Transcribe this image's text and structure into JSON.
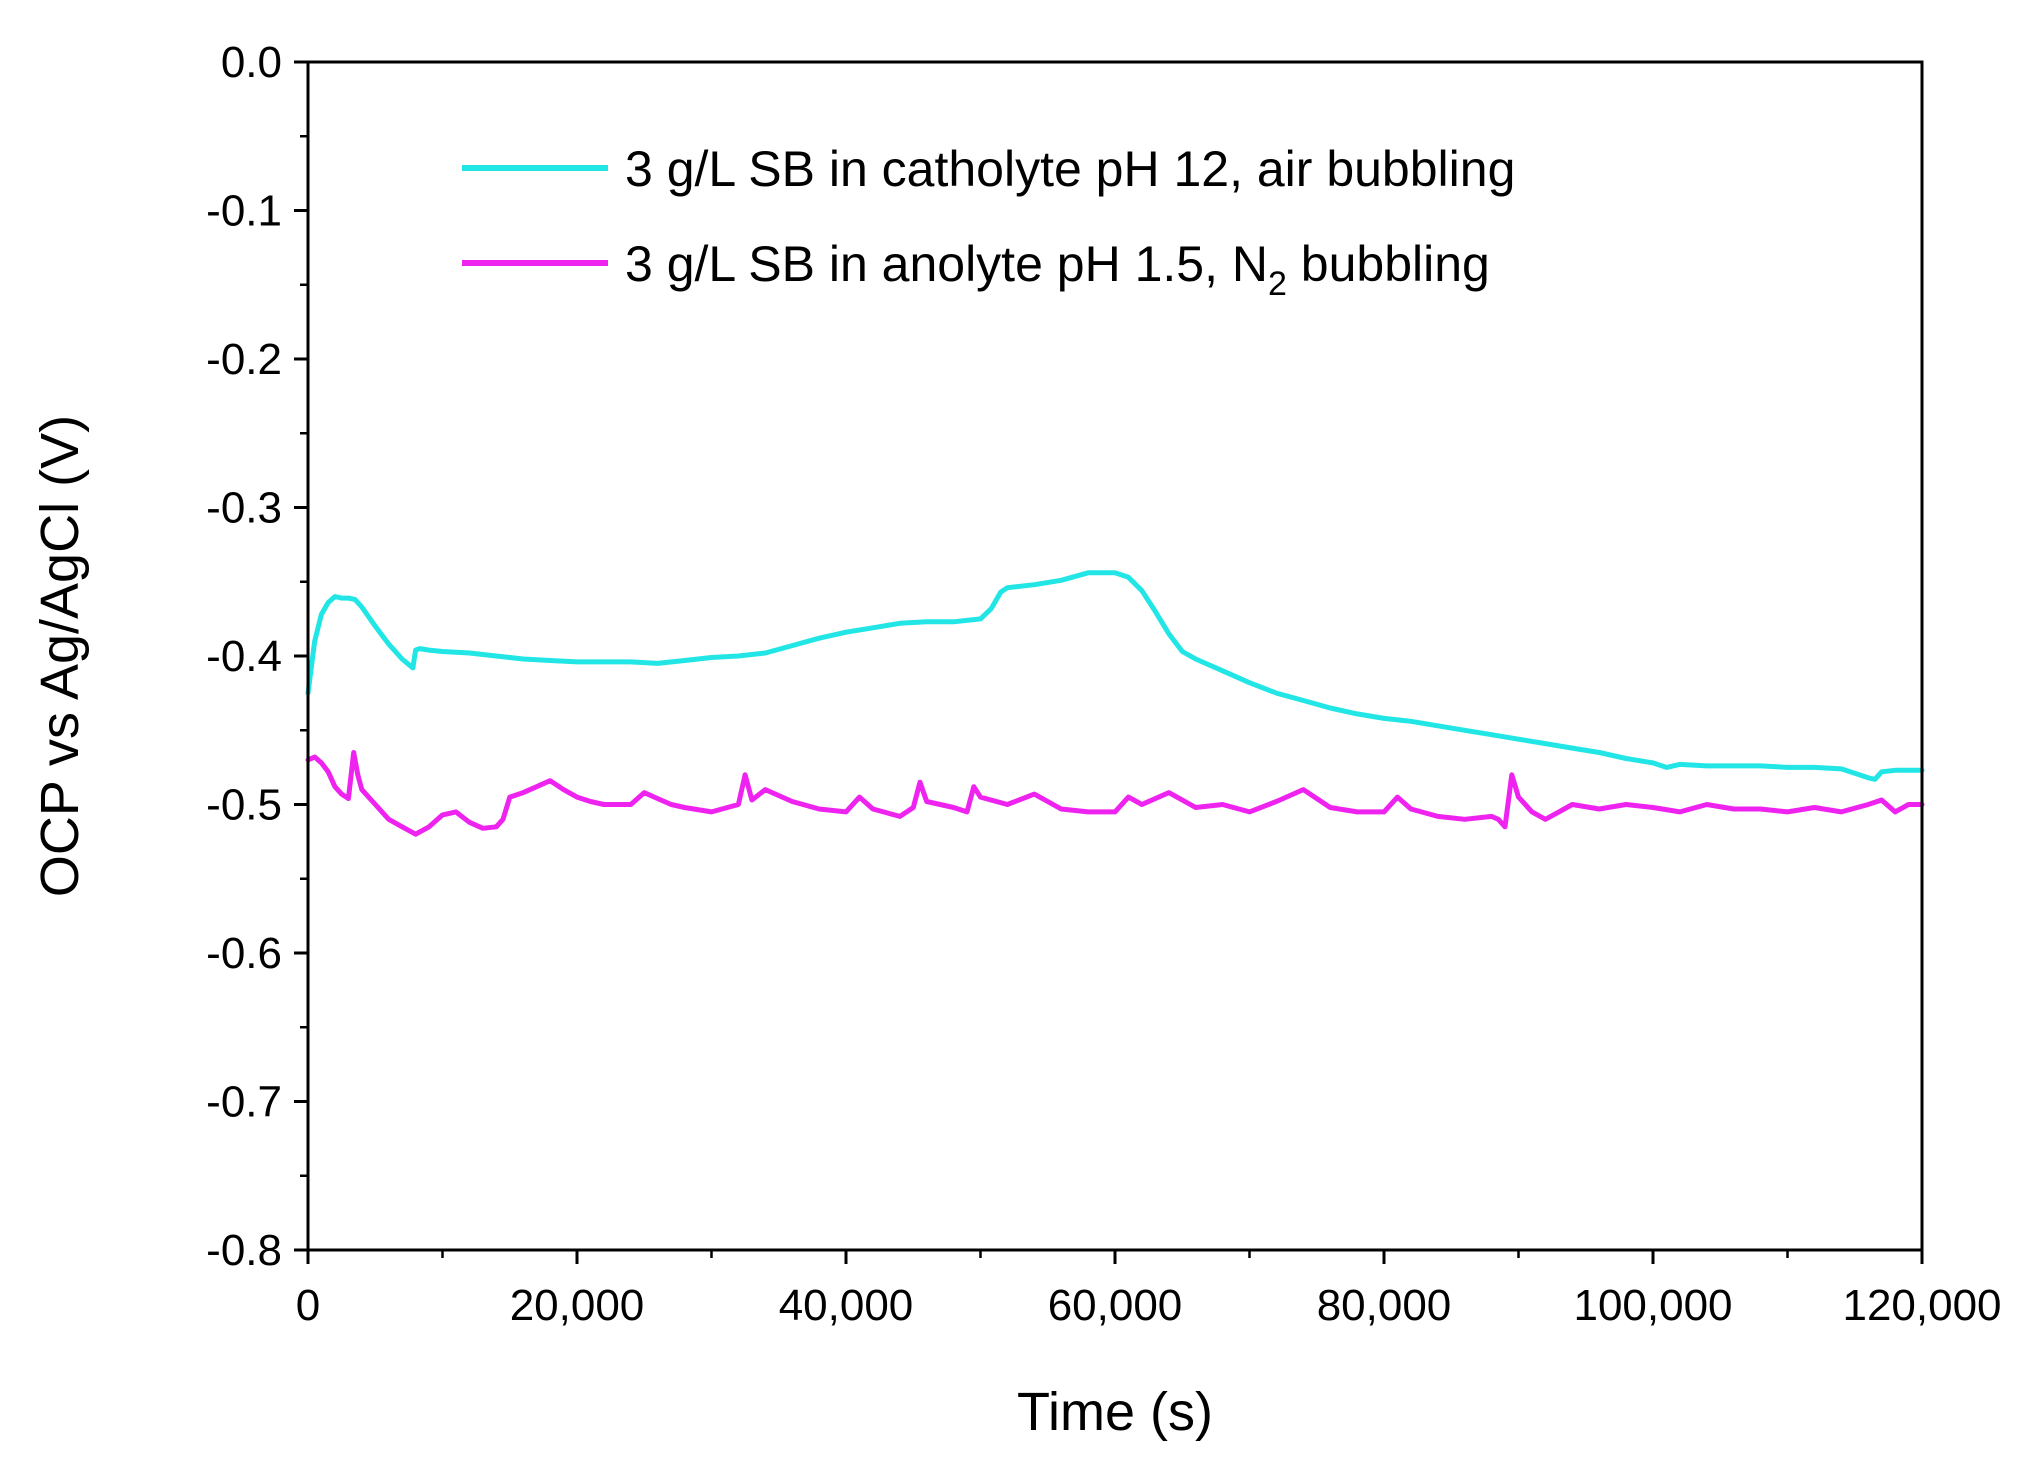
{
  "chart_data": {
    "type": "line",
    "title": "",
    "xlabel": "Time (s)",
    "ylabel": "OCP vs Ag/AgCl (V)",
    "xlim": [
      0,
      120000
    ],
    "ylim": [
      -0.8,
      0.0
    ],
    "x_ticks": [
      0,
      20000,
      40000,
      60000,
      80000,
      100000,
      120000
    ],
    "x_tick_labels": [
      "0",
      "20,000",
      "40,000",
      "60,000",
      "80,000",
      "100,000",
      "120,000"
    ],
    "y_ticks": [
      0.0,
      -0.1,
      -0.2,
      -0.3,
      -0.4,
      -0.5,
      -0.6,
      -0.7,
      -0.8
    ],
    "y_tick_labels": [
      "0.0",
      "-0.1",
      "-0.2",
      "-0.3",
      "-0.4",
      "-0.5",
      "-0.6",
      "-0.7",
      "-0.8"
    ],
    "grid": false,
    "legend_position": "top-right",
    "series": [
      {
        "name": "3 g/L SB in catholyte pH 12, air bubbling",
        "legend_parts": [
          "3 g/L SB in catholyte pH 12, air bubbling"
        ],
        "color": "#22e5e5",
        "x": [
          0,
          500,
          1000,
          1500,
          2000,
          2500,
          3000,
          3500,
          4000,
          5000,
          6000,
          7000,
          7800,
          8000,
          8300,
          9000,
          10000,
          12000,
          14000,
          16000,
          18000,
          20000,
          22000,
          24000,
          26000,
          28000,
          30000,
          32000,
          34000,
          36000,
          38000,
          40000,
          42000,
          44000,
          46000,
          48000,
          50000,
          50800,
          51500,
          52000,
          54000,
          56000,
          58000,
          60000,
          61000,
          62000,
          63000,
          64000,
          65000,
          66000,
          68000,
          70000,
          72000,
          74000,
          76000,
          78000,
          80000,
          82000,
          84000,
          86000,
          88000,
          90000,
          92000,
          94000,
          96000,
          98000,
          100000,
          101000,
          102000,
          104000,
          106000,
          108000,
          110000,
          112000,
          114000,
          115000,
          116000,
          116500,
          117000,
          118000,
          119000,
          120000
        ],
        "y": [
          -0.425,
          -0.39,
          -0.372,
          -0.364,
          -0.36,
          -0.361,
          -0.361,
          -0.362,
          -0.367,
          -0.38,
          -0.392,
          -0.402,
          -0.408,
          -0.396,
          -0.395,
          -0.396,
          -0.397,
          -0.398,
          -0.4,
          -0.402,
          -0.403,
          -0.404,
          -0.404,
          -0.404,
          -0.405,
          -0.403,
          -0.401,
          -0.4,
          -0.398,
          -0.393,
          -0.388,
          -0.384,
          -0.381,
          -0.378,
          -0.377,
          -0.377,
          -0.375,
          -0.368,
          -0.357,
          -0.354,
          -0.352,
          -0.349,
          -0.344,
          -0.344,
          -0.347,
          -0.356,
          -0.37,
          -0.385,
          -0.397,
          -0.402,
          -0.41,
          -0.418,
          -0.425,
          -0.43,
          -0.435,
          -0.439,
          -0.442,
          -0.444,
          -0.447,
          -0.45,
          -0.453,
          -0.456,
          -0.459,
          -0.462,
          -0.465,
          -0.469,
          -0.472,
          -0.475,
          -0.473,
          -0.474,
          -0.474,
          -0.474,
          -0.475,
          -0.475,
          -0.476,
          -0.479,
          -0.482,
          -0.483,
          -0.478,
          -0.477,
          -0.477,
          -0.477
        ]
      },
      {
        "name": "3 g/L SB in anolyte pH 1.5, N2 bubbling",
        "legend_parts": [
          "3 g/L SB in anolyte pH 1.5, N",
          "2",
          " bubbling"
        ],
        "color": "#ef23ef",
        "x": [
          0,
          500,
          1000,
          1500,
          2000,
          2500,
          3000,
          3400,
          3700,
          4000,
          5000,
          6000,
          7000,
          8000,
          9000,
          10000,
          11000,
          12000,
          13000,
          14000,
          14500,
          15000,
          16000,
          17000,
          18000,
          19000,
          20000,
          21000,
          22000,
          24000,
          25000,
          26000,
          27000,
          28000,
          30000,
          32000,
          32500,
          33000,
          34000,
          36000,
          38000,
          40000,
          41000,
          42000,
          44000,
          45000,
          45500,
          46000,
          48000,
          49000,
          49500,
          50000,
          52000,
          54000,
          56000,
          58000,
          60000,
          61000,
          62000,
          64000,
          66000,
          68000,
          70000,
          72000,
          74000,
          76000,
          78000,
          80000,
          81000,
          82000,
          84000,
          86000,
          88000,
          88500,
          89000,
          89500,
          90000,
          91000,
          92000,
          93000,
          94000,
          96000,
          98000,
          100000,
          102000,
          104000,
          106000,
          108000,
          110000,
          112000,
          114000,
          116000,
          117000,
          118000,
          119000,
          120000
        ],
        "y": [
          -0.47,
          -0.468,
          -0.472,
          -0.478,
          -0.488,
          -0.493,
          -0.496,
          -0.465,
          -0.48,
          -0.49,
          -0.5,
          -0.51,
          -0.515,
          -0.52,
          -0.515,
          -0.507,
          -0.505,
          -0.512,
          -0.516,
          -0.515,
          -0.51,
          -0.495,
          -0.492,
          -0.488,
          -0.484,
          -0.49,
          -0.495,
          -0.498,
          -0.5,
          -0.5,
          -0.492,
          -0.496,
          -0.5,
          -0.502,
          -0.505,
          -0.5,
          -0.48,
          -0.497,
          -0.49,
          -0.498,
          -0.503,
          -0.505,
          -0.495,
          -0.503,
          -0.508,
          -0.502,
          -0.485,
          -0.498,
          -0.502,
          -0.505,
          -0.488,
          -0.495,
          -0.5,
          -0.493,
          -0.503,
          -0.505,
          -0.505,
          -0.495,
          -0.5,
          -0.492,
          -0.502,
          -0.5,
          -0.505,
          -0.498,
          -0.49,
          -0.502,
          -0.505,
          -0.505,
          -0.495,
          -0.503,
          -0.508,
          -0.51,
          -0.508,
          -0.51,
          -0.515,
          -0.48,
          -0.495,
          -0.505,
          -0.51,
          -0.505,
          -0.5,
          -0.503,
          -0.5,
          -0.502,
          -0.505,
          -0.5,
          -0.503,
          -0.503,
          -0.505,
          -0.502,
          -0.505,
          -0.5,
          -0.497,
          -0.505,
          -0.5,
          -0.5
        ]
      }
    ]
  }
}
